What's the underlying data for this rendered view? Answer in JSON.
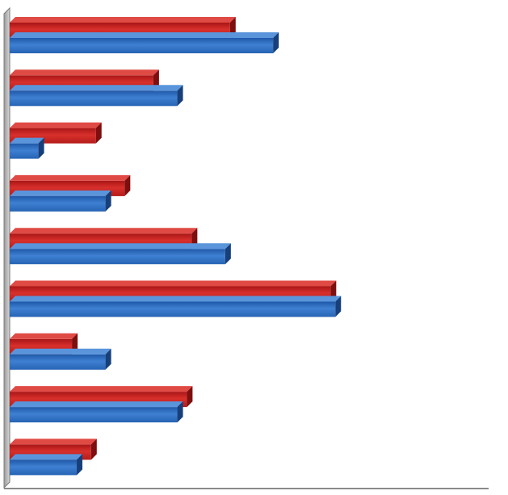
{
  "chart_data": {
    "type": "bar",
    "orientation": "horizontal",
    "style": "3d",
    "title": "",
    "xlabel": "",
    "ylabel": "",
    "grid": false,
    "legend": "none",
    "categories": [
      "",
      "",
      "",
      "",
      "",
      "",
      "",
      "",
      ""
    ],
    "xlim": [
      0,
      100
    ],
    "series": [
      {
        "color": "#c0201f",
        "values": [
          46,
          30,
          18,
          24,
          38,
          67,
          13,
          37,
          17
        ]
      },
      {
        "color": "#2a6ac0",
        "values": [
          55,
          35,
          6,
          20,
          45,
          68,
          20,
          35,
          14
        ]
      }
    ]
  }
}
